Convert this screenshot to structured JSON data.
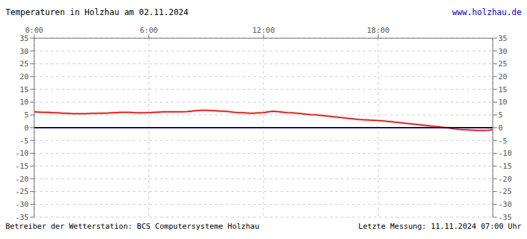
{
  "chart_data": {
    "type": "line",
    "title": "Temperaturen in Holzhau am 02.11.2024",
    "annotations": [
      "www.holzhau.de",
      "Betreiber der Wetterstation: BCS Computersysteme Holzhau",
      "Letzte Messung: 11.11.2024 07:00 Uhr"
    ],
    "xlim": [
      0,
      24
    ],
    "ylim": [
      -35,
      35
    ],
    "xticks": [
      {
        "value": 0,
        "label": "0:00"
      },
      {
        "value": 6,
        "label": "6:00"
      },
      {
        "value": 12,
        "label": "12:00"
      },
      {
        "value": 18,
        "label": "18:00"
      }
    ],
    "yticks": [
      -35,
      -30,
      -25,
      -20,
      -15,
      -10,
      -5,
      0,
      5,
      10,
      15,
      20,
      25,
      30,
      35
    ],
    "grid": true,
    "x": [
      0.0,
      0.25,
      0.5,
      0.75,
      1.0,
      1.25,
      1.5,
      1.75,
      2.0,
      2.25,
      2.5,
      2.75,
      3.0,
      3.25,
      3.5,
      3.75,
      4.0,
      4.25,
      4.5,
      4.75,
      5.0,
      5.25,
      5.5,
      5.75,
      6.0,
      6.25,
      6.5,
      6.75,
      7.0,
      7.25,
      7.5,
      7.75,
      8.0,
      8.25,
      8.5,
      8.75,
      9.0,
      9.25,
      9.5,
      9.75,
      10.0,
      10.25,
      10.5,
      10.75,
      11.0,
      11.25,
      11.5,
      11.75,
      12.0,
      12.25,
      12.5,
      12.75,
      13.0,
      13.25,
      13.5,
      13.75,
      14.0,
      14.25,
      14.5,
      14.75,
      15.0,
      15.25,
      15.5,
      15.75,
      16.0,
      16.25,
      16.5,
      16.75,
      17.0,
      17.25,
      17.5,
      17.75,
      18.0,
      18.25,
      18.5,
      18.75,
      19.0,
      19.25,
      19.5,
      19.75,
      20.0,
      20.25,
      20.5,
      20.75,
      21.0,
      21.25,
      21.5,
      21.75,
      22.0,
      22.25,
      22.5,
      22.75,
      23.0,
      23.25,
      23.5,
      23.75,
      24.0
    ],
    "series": [
      {
        "type": "band",
        "color": "#ffbbbb",
        "upper": [
          6.8,
          6.7,
          6.6,
          6.6,
          6.5,
          6.4,
          6.3,
          6.2,
          6.1,
          6.1,
          6.1,
          6.1,
          6.2,
          6.2,
          6.3,
          6.3,
          6.4,
          6.5,
          6.6,
          6.6,
          6.6,
          6.5,
          6.4,
          6.4,
          6.5,
          6.6,
          6.7,
          6.8,
          6.8,
          6.8,
          6.8,
          6.8,
          6.9,
          7.1,
          7.3,
          7.4,
          7.4,
          7.3,
          7.2,
          7.1,
          7.0,
          6.8,
          6.6,
          6.5,
          6.4,
          6.3,
          6.3,
          6.4,
          6.5,
          6.8,
          7.0,
          6.9,
          6.7,
          6.5,
          6.4,
          6.3,
          6.1,
          5.9,
          5.7,
          5.6,
          5.4,
          5.2,
          5.0,
          4.8,
          4.6,
          4.4,
          4.2,
          4.0,
          3.8,
          3.7,
          3.6,
          3.5,
          3.4,
          3.3,
          3.1,
          2.9,
          2.7,
          2.5,
          2.3,
          2.1,
          1.9,
          1.7,
          1.5,
          1.3,
          1.1,
          0.9,
          0.7,
          0.4,
          0.1,
          -0.1,
          -0.2,
          -0.3,
          -0.4,
          -0.5,
          -0.5,
          -0.4,
          -0.2
        ],
        "lower": [
          5.6,
          5.5,
          5.4,
          5.4,
          5.3,
          5.2,
          5.1,
          5.0,
          4.9,
          4.9,
          4.9,
          4.9,
          5.0,
          5.0,
          5.1,
          5.1,
          5.2,
          5.3,
          5.4,
          5.4,
          5.4,
          5.3,
          5.2,
          5.2,
          5.3,
          5.4,
          5.5,
          5.6,
          5.6,
          5.6,
          5.6,
          5.6,
          5.7,
          5.9,
          6.1,
          6.2,
          6.2,
          6.1,
          6.0,
          5.9,
          5.8,
          5.6,
          5.4,
          5.3,
          5.2,
          5.1,
          5.1,
          5.2,
          5.3,
          5.6,
          5.8,
          5.7,
          5.5,
          5.3,
          5.2,
          5.1,
          4.9,
          4.7,
          4.5,
          4.4,
          4.2,
          4.0,
          3.8,
          3.6,
          3.4,
          3.2,
          3.0,
          2.8,
          2.6,
          2.5,
          2.4,
          2.3,
          2.2,
          2.1,
          1.9,
          1.7,
          1.5,
          1.3,
          1.1,
          0.9,
          0.7,
          0.5,
          0.3,
          0.1,
          -0.1,
          -0.3,
          -0.5,
          -0.8,
          -1.1,
          -1.3,
          -1.4,
          -1.5,
          -1.6,
          -1.7,
          -1.7,
          -1.6,
          -1.4
        ]
      },
      {
        "type": "line",
        "color": "#cc0000",
        "values": [
          6.2,
          6.1,
          6.0,
          6.0,
          5.9,
          5.8,
          5.7,
          5.6,
          5.5,
          5.5,
          5.5,
          5.5,
          5.6,
          5.6,
          5.7,
          5.7,
          5.8,
          5.9,
          6.0,
          6.0,
          6.0,
          5.9,
          5.8,
          5.8,
          5.9,
          6.0,
          6.1,
          6.2,
          6.2,
          6.2,
          6.2,
          6.2,
          6.3,
          6.5,
          6.7,
          6.8,
          6.8,
          6.7,
          6.6,
          6.5,
          6.4,
          6.2,
          6.0,
          5.9,
          5.8,
          5.7,
          5.7,
          5.8,
          5.9,
          6.2,
          6.4,
          6.3,
          6.1,
          5.9,
          5.8,
          5.7,
          5.5,
          5.3,
          5.1,
          5.0,
          4.8,
          4.6,
          4.4,
          4.2,
          4.0,
          3.8,
          3.6,
          3.4,
          3.2,
          3.1,
          3.0,
          2.9,
          2.8,
          2.7,
          2.5,
          2.3,
          2.1,
          1.9,
          1.7,
          1.5,
          1.3,
          1.1,
          0.9,
          0.7,
          0.5,
          0.3,
          0.1,
          -0.2,
          -0.5,
          -0.7,
          -0.8,
          -0.9,
          -1.0,
          -1.1,
          -1.1,
          -1.0,
          -0.8
        ]
      }
    ],
    "hlines": [
      {
        "value": 0,
        "color": "#000080"
      }
    ]
  }
}
